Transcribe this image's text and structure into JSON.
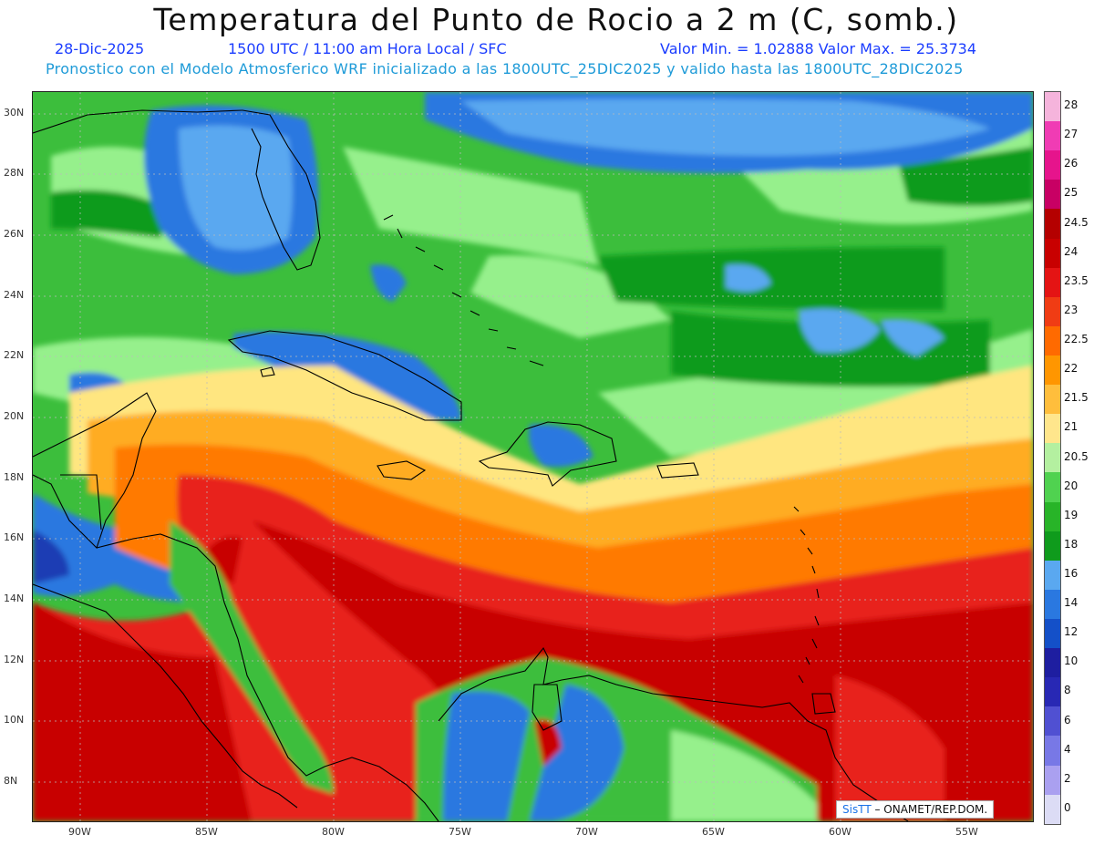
{
  "header": {
    "title": "Temperatura del Punto de Rocio a 2 m (C, somb.)",
    "date": "28-Dic-2025",
    "time_info": "1500 UTC / 11:00 am Hora Local / SFC",
    "min_max": "Valor Min. = 1.02888  Valor Max. = 25.3734",
    "model_info": "Pronostico con el Modelo Atmosferico WRF inicializado a las 1800UTC_25DIC2025 y valido hasta las  1800UTC_28DIC2025"
  },
  "map": {
    "lon_labels": [
      "90W",
      "85W",
      "80W",
      "75W",
      "70W",
      "65W",
      "60W",
      "55W"
    ],
    "lat_labels": [
      "30N",
      "28N",
      "26N",
      "24N",
      "22N",
      "20N",
      "18N",
      "16N",
      "14N",
      "12N",
      "10N",
      "8N"
    ],
    "field_colors": {
      "deep_red": "#c80000",
      "red": "#e8211c",
      "orange": "#ff7a00",
      "light_orange": "#ffac20",
      "yellow": "#ffe680",
      "light_green": "#96f08c",
      "green": "#3cbe3c",
      "dark_green": "#0f9b1c",
      "light_blue": "#5aa8f0",
      "blue": "#2a78e0",
      "dark_blue": "#1e3cb4"
    }
  },
  "legend": {
    "labels": [
      "28",
      "27",
      "26",
      "25",
      "24.5",
      "24",
      "23.5",
      "23",
      "22.5",
      "22",
      "21.5",
      "21",
      "20.5",
      "20",
      "19",
      "18",
      "16",
      "14",
      "12",
      "10",
      "8",
      "6",
      "4",
      "2",
      "0"
    ],
    "colors": [
      "#f5b4dc",
      "#f03cb4",
      "#e6148c",
      "#c80064",
      "#b40000",
      "#c80000",
      "#e41414",
      "#f03c14",
      "#ff6a00",
      "#ff9600",
      "#ffbe3c",
      "#ffe68c",
      "#b4f0a0",
      "#50d250",
      "#28b428",
      "#0f9b1c",
      "#5aa8f0",
      "#2a78e0",
      "#1450c8",
      "#1e1ea0",
      "#2828b4",
      "#5050d2",
      "#7878e6",
      "#aaa0f0",
      "#dcdcf5"
    ]
  },
  "credit": {
    "brand": "SisTT",
    "text": " – ONAMET/REP.DOM."
  }
}
